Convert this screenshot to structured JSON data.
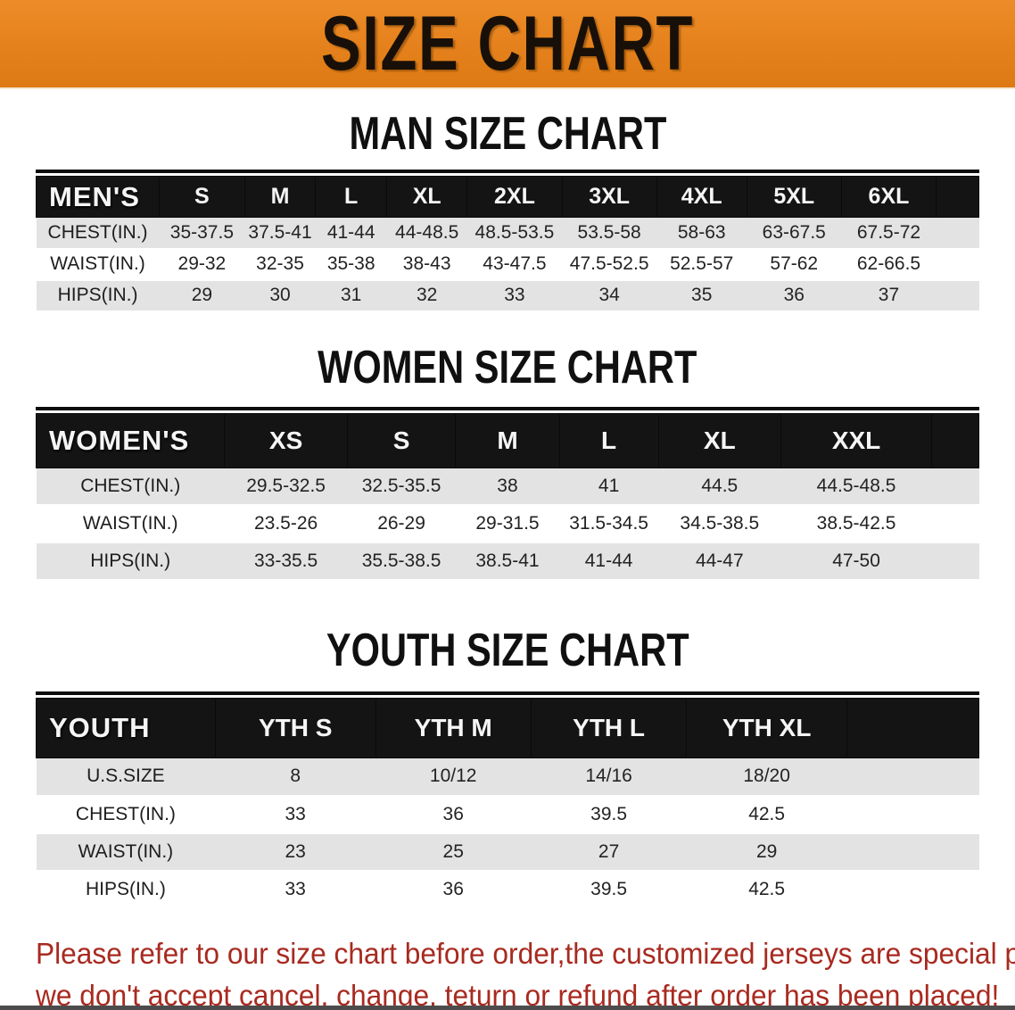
{
  "banner": {
    "title": "SIZE CHART",
    "bg_color": "#e5811c",
    "text_color": "#181008"
  },
  "sections": {
    "men": {
      "heading": "MAN SIZE CHART"
    },
    "women": {
      "heading": "WOMEN SIZE CHART"
    },
    "youth": {
      "heading": "YOUTH SIZE CHART"
    }
  },
  "tables": {
    "men": {
      "corner": "MEN'S",
      "columns": [
        "S",
        "M",
        "L",
        "XL",
        "2XL",
        "3XL",
        "4XL",
        "5XL",
        "6XL"
      ],
      "rows": [
        {
          "label": "CHEST(IN.)",
          "values": [
            "35-37.5",
            "37.5-41",
            "41-44",
            "44-48.5",
            "48.5-53.5",
            "53.5-58",
            "58-63",
            "63-67.5",
            "67.5-72"
          ]
        },
        {
          "label": "WAIST(IN.)",
          "values": [
            "29-32",
            "32-35",
            "35-38",
            "38-43",
            "43-47.5",
            "47.5-52.5",
            "52.5-57",
            "57-62",
            "62-66.5"
          ]
        },
        {
          "label": "HIPS(IN.)",
          "values": [
            "29",
            "30",
            "31",
            "32",
            "33",
            "34",
            "35",
            "36",
            "37"
          ]
        }
      ]
    },
    "women": {
      "corner": "WOMEN'S",
      "columns": [
        "XS",
        "S",
        "M",
        "L",
        "XL",
        "XXL"
      ],
      "rows": [
        {
          "label": "CHEST(IN.)",
          "values": [
            "29.5-32.5",
            "32.5-35.5",
            "38",
            "41",
            "44.5",
            "44.5-48.5"
          ]
        },
        {
          "label": "WAIST(IN.)",
          "values": [
            "23.5-26",
            "26-29",
            "29-31.5",
            "31.5-34.5",
            "34.5-38.5",
            "38.5-42.5"
          ]
        },
        {
          "label": "HIPS(IN.)",
          "values": [
            "33-35.5",
            "35.5-38.5",
            "38.5-41",
            "41-44",
            "44-47",
            "47-50"
          ]
        }
      ]
    },
    "youth": {
      "corner": "YOUTH",
      "columns": [
        "YTH S",
        "YTH M",
        "YTH L",
        "YTH XL"
      ],
      "rows": [
        {
          "label": "U.S.SIZE",
          "values": [
            "8",
            "10/12",
            "14/16",
            "18/20"
          ]
        },
        {
          "label": "CHEST(IN.)",
          "values": [
            "33",
            "36",
            "39.5",
            "42.5"
          ]
        },
        {
          "label": "WAIST(IN.)",
          "values": [
            "23",
            "25",
            "27",
            "29"
          ]
        },
        {
          "label": "HIPS(IN.)",
          "values": [
            "33",
            "36",
            "39.5",
            "42.5"
          ]
        }
      ]
    }
  },
  "footer": {
    "line1": "Please refer to our size chart before order,the customized jerseys are special products,",
    "line2": "we don't accept cancel, change, teturn or refund after order has been placed!",
    "text_color": "#a82a20"
  }
}
